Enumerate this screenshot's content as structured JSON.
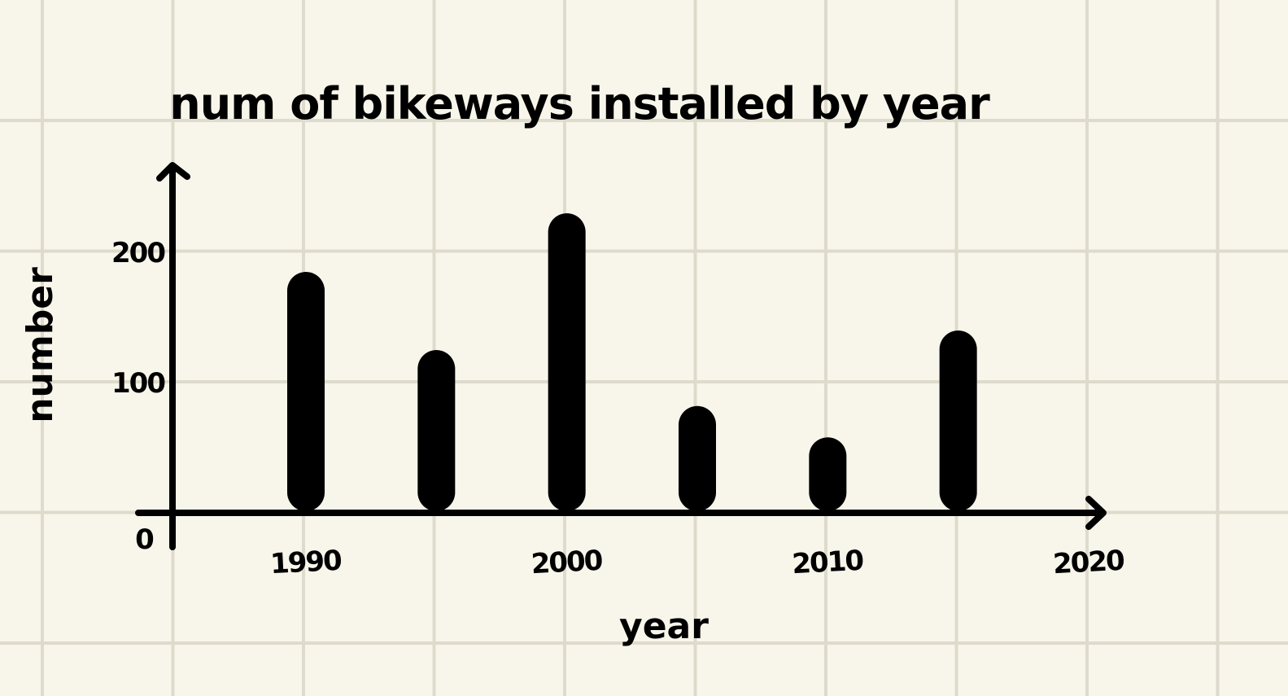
{
  "chart_data": {
    "type": "bar",
    "title": "num of bikeways installed by year",
    "xlabel": "year",
    "ylabel": "number",
    "x": [
      1990,
      1995,
      2000,
      2005,
      2010,
      2015
    ],
    "values": [
      185,
      125,
      230,
      82,
      58,
      140
    ],
    "x_ticks": [
      {
        "value": 1990,
        "label": "1990"
      },
      {
        "value": 2000,
        "label": "2000"
      },
      {
        "value": 2010,
        "label": "2010"
      },
      {
        "value": 2020,
        "label": "2020"
      }
    ],
    "y_ticks": [
      {
        "value": 0,
        "label": "0"
      },
      {
        "value": 100,
        "label": "100"
      },
      {
        "value": 200,
        "label": "200"
      }
    ],
    "xlim": [
      1979.7,
      2020
    ],
    "ylim": [
      0,
      260
    ],
    "grid": true,
    "bar_color": "#000000",
    "background_color": "#f8f6ea",
    "grid_color": "#dedbcd"
  }
}
